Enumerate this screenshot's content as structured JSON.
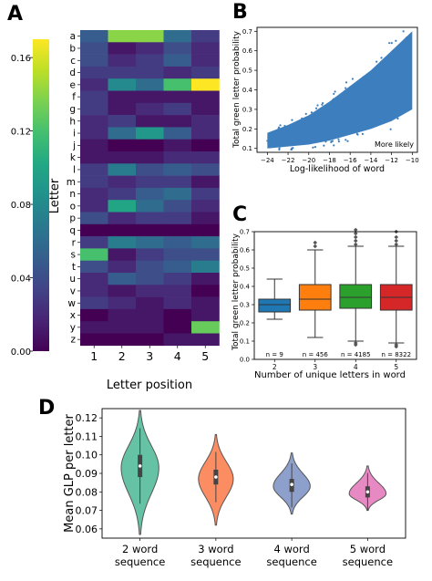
{
  "colors": {
    "viridis": [
      "#440154",
      "#482475",
      "#414487",
      "#355f8d",
      "#2a788e",
      "#21918c",
      "#22a884",
      "#44bf70",
      "#7ad151",
      "#bddf26",
      "#fde725"
    ],
    "scatter": "#3d7fbe",
    "box": [
      "#1f77b4",
      "#ff7f0e",
      "#2ca02c",
      "#d62728"
    ],
    "violin": [
      "#66c2a5",
      "#fc8d62",
      "#8da0cb",
      "#e78ac3"
    ]
  },
  "panels": {
    "A": {
      "label": "A",
      "chart_data": {
        "type": "heatmap",
        "title": "",
        "xlabel": "Letter position",
        "ylabel": "Letter",
        "x_categories": [
          "1",
          "2",
          "3",
          "4",
          "5"
        ],
        "y_categories": [
          "a",
          "b",
          "c",
          "d",
          "e",
          "f",
          "g",
          "h",
          "i",
          "j",
          "k",
          "l",
          "m",
          "n",
          "o",
          "p",
          "q",
          "r",
          "s",
          "t",
          "u",
          "v",
          "w",
          "x",
          "y",
          "z"
        ],
        "values": [
          [
            0.05,
            0.14,
            0.14,
            0.06,
            0.03
          ],
          [
            0.04,
            0.01,
            0.02,
            0.04,
            0.02
          ],
          [
            0.04,
            0.02,
            0.03,
            0.05,
            0.02
          ],
          [
            0.03,
            0.03,
            0.03,
            0.02,
            0.03
          ],
          [
            0.02,
            0.08,
            0.06,
            0.12,
            0.17
          ],
          [
            0.03,
            0.01,
            0.01,
            0.01,
            0.01
          ],
          [
            0.03,
            0.01,
            0.02,
            0.03,
            0.01
          ],
          [
            0.02,
            0.03,
            0.01,
            0.01,
            0.02
          ],
          [
            0.02,
            0.06,
            0.09,
            0.05,
            0.02
          ],
          [
            0.01,
            0.0,
            0.0,
            0.01,
            0.0
          ],
          [
            0.01,
            0.01,
            0.01,
            0.02,
            0.02
          ],
          [
            0.03,
            0.07,
            0.04,
            0.05,
            0.04
          ],
          [
            0.03,
            0.02,
            0.03,
            0.03,
            0.01
          ],
          [
            0.02,
            0.03,
            0.05,
            0.06,
            0.03
          ],
          [
            0.02,
            0.1,
            0.06,
            0.04,
            0.02
          ],
          [
            0.04,
            0.02,
            0.03,
            0.03,
            0.01
          ],
          [
            0.0,
            0.0,
            0.0,
            0.0,
            0.0
          ],
          [
            0.03,
            0.07,
            0.06,
            0.05,
            0.06
          ],
          [
            0.12,
            0.01,
            0.03,
            0.04,
            0.04
          ],
          [
            0.04,
            0.02,
            0.04,
            0.05,
            0.07
          ],
          [
            0.02,
            0.05,
            0.04,
            0.03,
            0.01
          ],
          [
            0.02,
            0.01,
            0.02,
            0.02,
            0.0
          ],
          [
            0.03,
            0.02,
            0.01,
            0.02,
            0.01
          ],
          [
            0.0,
            0.01,
            0.01,
            0.0,
            0.01
          ],
          [
            0.01,
            0.01,
            0.01,
            0.0,
            0.13
          ],
          [
            0.0,
            0.0,
            0.0,
            0.01,
            0.01
          ]
        ],
        "colorbar": {
          "min": 0.0,
          "max": 0.17,
          "ticks": [
            "0.00",
            "0.04",
            "0.08",
            "0.12",
            "0.16"
          ],
          "tick_values": [
            0,
            0.04,
            0.08,
            0.12,
            0.16
          ]
        }
      }
    },
    "B": {
      "label": "B",
      "chart_data": {
        "type": "scatter",
        "title": "",
        "xlabel": "Log-likelihood of word",
        "ylabel": "Total green letter probability",
        "annotation": "More likely",
        "xlim": [
          -25,
          -9.5
        ],
        "ylim": [
          0.08,
          0.72
        ],
        "xticks": [
          "−24",
          "−22",
          "−20",
          "−18",
          "−16",
          "−14",
          "−12",
          "−10"
        ],
        "xtick_values": [
          -24,
          -22,
          -20,
          -18,
          -16,
          -14,
          -12,
          -10
        ],
        "yticks": [
          "0.1",
          "0.2",
          "0.3",
          "0.4",
          "0.5",
          "0.6",
          "0.7"
        ],
        "ytick_values": [
          0.1,
          0.2,
          0.3,
          0.4,
          0.5,
          0.6,
          0.7
        ],
        "trend": {
          "x": [
            -24,
            -22,
            -20,
            -18,
            -16,
            -14,
            -12,
            -10
          ],
          "lower": [
            0.1,
            0.11,
            0.12,
            0.14,
            0.17,
            0.2,
            0.24,
            0.3
          ],
          "upper": [
            0.18,
            0.22,
            0.27,
            0.34,
            0.42,
            0.5,
            0.6,
            0.7
          ]
        }
      }
    },
    "C": {
      "label": "C",
      "chart_data": {
        "type": "box",
        "title": "",
        "xlabel": "Number of unique letters in word",
        "ylabel": "Total green letter probability",
        "categories": [
          "2",
          "3",
          "4",
          "5"
        ],
        "counts": [
          "n = 9",
          "n = 456",
          "n = 4185",
          "n = 8322"
        ],
        "ylim": [
          0.0,
          0.7
        ],
        "yticks": [
          "0.0",
          "0.1",
          "0.2",
          "0.3",
          "0.4",
          "0.5",
          "0.6",
          "0.7"
        ],
        "ytick_values": [
          0,
          0.1,
          0.2,
          0.3,
          0.4,
          0.5,
          0.6,
          0.7
        ],
        "boxes": [
          {
            "q1": 0.26,
            "median": 0.3,
            "q3": 0.33,
            "whislo": 0.22,
            "whishi": 0.44,
            "fliers_high": [],
            "fliers_low": []
          },
          {
            "q1": 0.27,
            "median": 0.33,
            "q3": 0.41,
            "whislo": 0.12,
            "whishi": 0.6,
            "fliers_high": [
              0.62,
              0.64
            ],
            "fliers_low": []
          },
          {
            "q1": 0.28,
            "median": 0.34,
            "q3": 0.41,
            "whislo": 0.1,
            "whishi": 0.62,
            "fliers_high": [
              0.63,
              0.65,
              0.67,
              0.69,
              0.71
            ],
            "fliers_low": [
              0.08,
              0.09
            ]
          },
          {
            "q1": 0.27,
            "median": 0.34,
            "q3": 0.41,
            "whislo": 0.09,
            "whishi": 0.62,
            "fliers_high": [
              0.63,
              0.65,
              0.67,
              0.7
            ],
            "fliers_low": [
              0.07,
              0.08
            ]
          }
        ]
      }
    },
    "D": {
      "label": "D",
      "chart_data": {
        "type": "violin",
        "title": "",
        "xlabel": "",
        "ylabel": "Mean GLP per letter",
        "categories": [
          "2 word\nsequence",
          "3 word\nsequence",
          "4 word\nsequence",
          "5 word\nsequence"
        ],
        "category_lines": [
          [
            "2 word",
            "sequence"
          ],
          [
            "3 word",
            "sequence"
          ],
          [
            "4 word",
            "sequence"
          ],
          [
            "5 word",
            "sequence"
          ]
        ],
        "ylim": [
          0.055,
          0.125
        ],
        "yticks": [
          "0.06",
          "0.07",
          "0.08",
          "0.09",
          "0.10",
          "0.11",
          "0.12"
        ],
        "ytick_values": [
          0.06,
          0.07,
          0.08,
          0.09,
          0.1,
          0.11,
          0.12
        ],
        "series": [
          {
            "min": 0.057,
            "max": 0.124,
            "median": 0.094,
            "q1": 0.088,
            "q3": 0.1,
            "mode": 0.093,
            "width": 0.92
          },
          {
            "min": 0.062,
            "max": 0.111,
            "median": 0.088,
            "q1": 0.084,
            "q3": 0.092,
            "mode": 0.087,
            "width": 0.85
          },
          {
            "min": 0.068,
            "max": 0.101,
            "median": 0.084,
            "q1": 0.08,
            "q3": 0.087,
            "mode": 0.083,
            "width": 0.9
          },
          {
            "min": 0.07,
            "max": 0.094,
            "median": 0.08,
            "q1": 0.077,
            "q3": 0.083,
            "mode": 0.079,
            "width": 0.9
          }
        ]
      }
    }
  }
}
